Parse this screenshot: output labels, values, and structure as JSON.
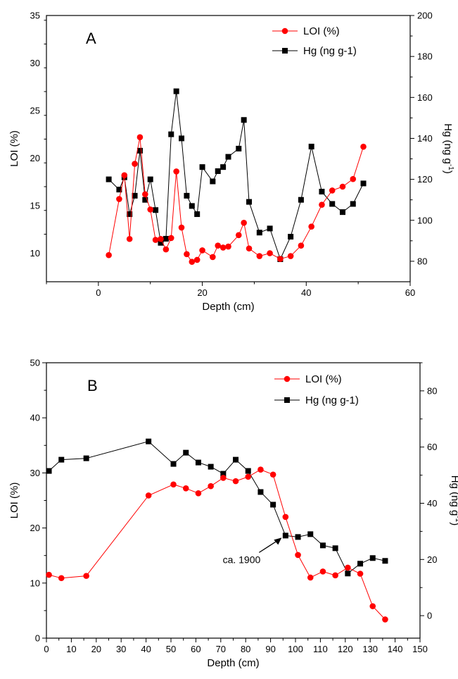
{
  "chart_data": [
    {
      "type": "line",
      "panel_label": "A",
      "xlabel": "Depth (cm)",
      "ylabel_left": "LOI (%)",
      "ylabel_right_main": "Hg (ng g",
      "ylabel_right_sup": "-1",
      "ylabel_right_close": ")",
      "xlim": [
        -10,
        60
      ],
      "ylim_left": [
        7,
        35
      ],
      "ylim_right": [
        70,
        200
      ],
      "x_ticks": [
        0,
        20,
        40,
        60
      ],
      "y_left_ticks": [
        10,
        15,
        20,
        25,
        30,
        35
      ],
      "y_right_ticks": [
        80,
        100,
        120,
        140,
        160,
        180,
        200
      ],
      "legend": "top-right",
      "series": [
        {
          "name": "LOI (%)",
          "axis": "left",
          "color": "#ff0000",
          "marker": "circle",
          "x": [
            2,
            4,
            5,
            6,
            7,
            8,
            9,
            10,
            11,
            12,
            13,
            14,
            15,
            16,
            17,
            18,
            19,
            20,
            22,
            23,
            24,
            25,
            27,
            28,
            29,
            31,
            33,
            35,
            37,
            39,
            41,
            43,
            45,
            47,
            49,
            51
          ],
          "y": [
            9.8,
            15.7,
            18.2,
            11.5,
            19.4,
            22.2,
            16.2,
            14.6,
            11.4,
            11.5,
            10.4,
            11.6,
            18.6,
            12.7,
            9.9,
            9.1,
            9.3,
            10.3,
            9.6,
            10.8,
            10.6,
            10.7,
            11.9,
            13.2,
            10.5,
            9.7,
            10.0,
            9.4,
            9.7,
            10.8,
            12.8,
            15.1,
            16.6,
            17.0,
            17.8,
            21.2
          ]
        },
        {
          "name": "Hg (ng g-1)",
          "axis": "right",
          "color": "#000000",
          "marker": "square",
          "x": [
            2,
            4,
            5,
            6,
            7,
            8,
            9,
            10,
            11,
            12,
            13,
            14,
            15,
            16,
            17,
            18,
            19,
            20,
            22,
            23,
            24,
            25,
            27,
            28,
            29,
            31,
            33,
            35,
            37,
            39,
            41,
            43,
            45,
            47,
            49,
            51
          ],
          "y": [
            120,
            115,
            121,
            103,
            112,
            134,
            110,
            120,
            105,
            89,
            91,
            142,
            163,
            140,
            112,
            107,
            103,
            126,
            119,
            124,
            126,
            131,
            135,
            149,
            109,
            94,
            96,
            81,
            92,
            110,
            136,
            114,
            108,
            104,
            108,
            118
          ]
        }
      ]
    },
    {
      "type": "line",
      "panel_label": "B",
      "xlabel": "Depth (cm)",
      "ylabel_left": "LOI (%)",
      "ylabel_right_main": "Hg (ng g",
      "ylabel_right_sup": "-1",
      "ylabel_right_close": ")",
      "xlim": [
        0,
        150
      ],
      "ylim_left": [
        0,
        50
      ],
      "ylim_right": [
        -8,
        90
      ],
      "x_ticks": [
        0,
        10,
        20,
        30,
        40,
        50,
        60,
        70,
        80,
        90,
        100,
        110,
        120,
        130,
        140,
        150
      ],
      "y_left_ticks": [
        0,
        10,
        20,
        30,
        40,
        50
      ],
      "y_right_ticks": [
        0,
        20,
        40,
        60,
        80
      ],
      "legend": "top-right",
      "annotation": {
        "text": "ca. 1900",
        "x": 95,
        "y_right": 28
      },
      "series": [
        {
          "name": "LOI (%)",
          "axis": "left",
          "color": "#ff0000",
          "marker": "circle",
          "x": [
            1,
            6,
            16,
            41,
            51,
            56,
            61,
            66,
            71,
            76,
            81,
            86,
            91,
            96,
            101,
            106,
            111,
            116,
            121,
            126,
            131,
            136
          ],
          "y": [
            11.5,
            10.9,
            11.3,
            25.9,
            27.9,
            27.2,
            26.3,
            27.6,
            29.1,
            28.5,
            29.3,
            30.6,
            29.7,
            22.0,
            15.1,
            11.0,
            12.1,
            11.4,
            12.8,
            11.7,
            5.8,
            3.4
          ]
        },
        {
          "name": "Hg (ng g-1)",
          "axis": "right",
          "color": "#000000",
          "marker": "square",
          "x": [
            1,
            6,
            16,
            41,
            51,
            56,
            61,
            66,
            71,
            76,
            81,
            86,
            91,
            96,
            101,
            106,
            111,
            116,
            121,
            126,
            131,
            136
          ],
          "y": [
            51.5,
            55.5,
            56,
            62,
            54,
            58,
            54.5,
            53,
            50.5,
            55.5,
            51.5,
            44,
            39.5,
            28.5,
            28,
            29,
            25,
            24,
            15,
            18.5,
            20.5,
            19.5
          ]
        }
      ]
    }
  ]
}
